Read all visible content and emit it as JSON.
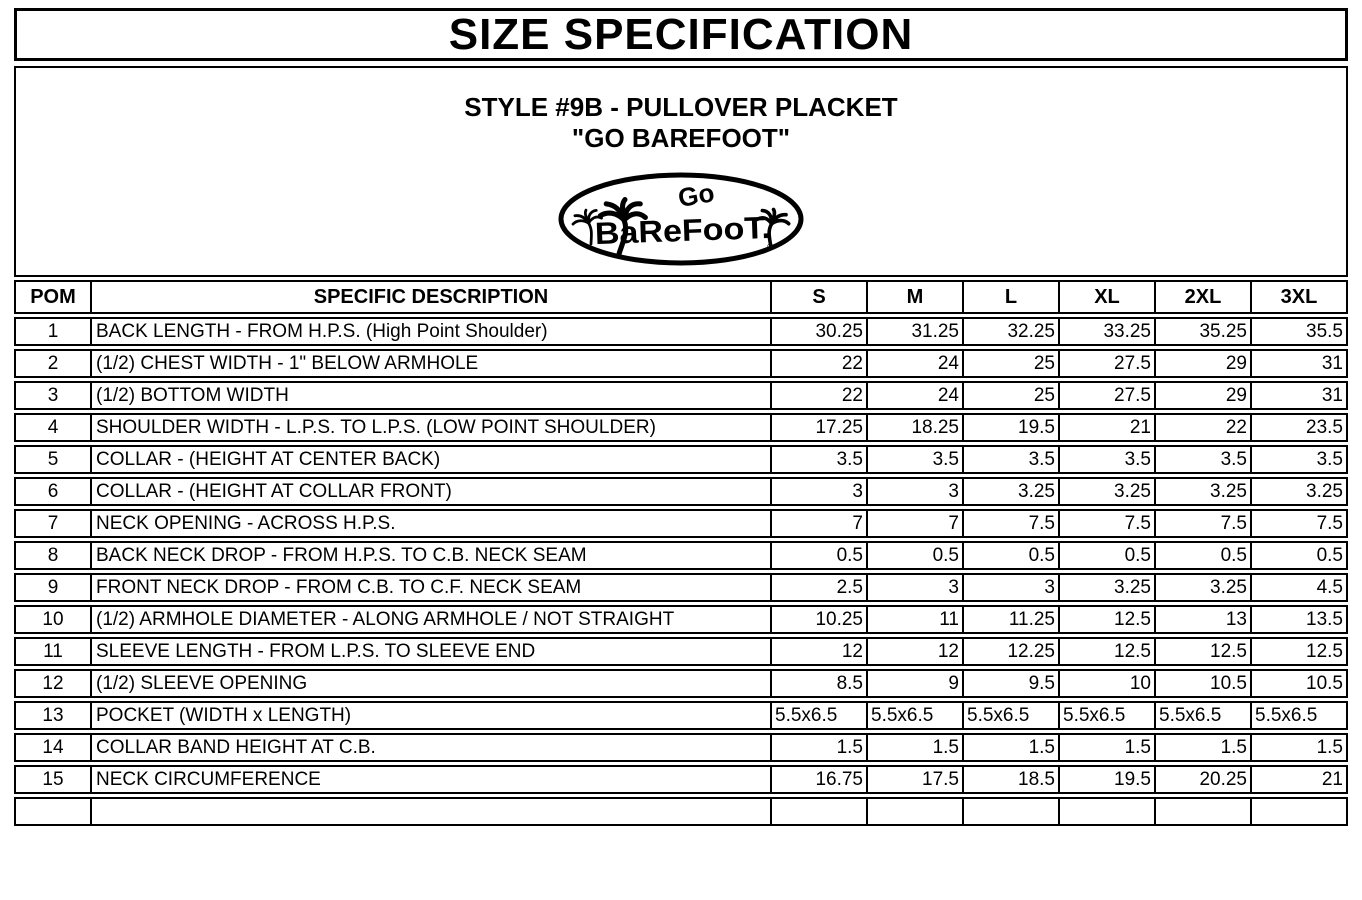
{
  "title": "SIZE SPECIFICATION",
  "header": {
    "style_line": "STYLE #9B - PULLOVER PLACKET",
    "brand_line": "\"GO BAREFOOT\""
  },
  "logo": {
    "top_text": "Go",
    "main_text": "BaReFooT.",
    "registered_mark": "®"
  },
  "table": {
    "columns": [
      "POM",
      "SPECIFIC DESCRIPTION",
      "S",
      "M",
      "L",
      "XL",
      "2XL",
      "3XL"
    ],
    "rows": [
      {
        "pom": "1",
        "description": "BACK LENGTH - FROM H.P.S. (High Point Shoulder)",
        "values": [
          "30.25",
          "31.25",
          "32.25",
          "33.25",
          "35.25",
          "35.5"
        ]
      },
      {
        "pom": "2",
        "description": "(1/2) CHEST WIDTH - 1\" BELOW ARMHOLE",
        "values": [
          "22",
          "24",
          "25",
          "27.5",
          "29",
          "31"
        ]
      },
      {
        "pom": "3",
        "description": "(1/2) BOTTOM WIDTH",
        "values": [
          "22",
          "24",
          "25",
          "27.5",
          "29",
          "31"
        ]
      },
      {
        "pom": "4",
        "description": "SHOULDER WIDTH - L.P.S. TO L.P.S. (LOW POINT SHOULDER)",
        "values": [
          "17.25",
          "18.25",
          "19.5",
          "21",
          "22",
          "23.5"
        ]
      },
      {
        "pom": "5",
        "description": "COLLAR - (HEIGHT AT CENTER BACK)",
        "values": [
          "3.5",
          "3.5",
          "3.5",
          "3.5",
          "3.5",
          "3.5"
        ]
      },
      {
        "pom": "6",
        "description": "COLLAR - (HEIGHT AT COLLAR FRONT)",
        "values": [
          "3",
          "3",
          "3.25",
          "3.25",
          "3.25",
          "3.25"
        ]
      },
      {
        "pom": "7",
        "description": "NECK OPENING - ACROSS H.P.S.",
        "values": [
          "7",
          "7",
          "7.5",
          "7.5",
          "7.5",
          "7.5"
        ]
      },
      {
        "pom": "8",
        "description": "BACK NECK DROP - FROM H.P.S. TO C.B. NECK SEAM",
        "values": [
          "0.5",
          "0.5",
          "0.5",
          "0.5",
          "0.5",
          "0.5"
        ]
      },
      {
        "pom": "9",
        "description": "FRONT NECK DROP - FROM C.B. TO C.F. NECK SEAM",
        "values": [
          "2.5",
          "3",
          "3",
          "3.25",
          "3.25",
          "4.5"
        ]
      },
      {
        "pom": "10",
        "description": "(1/2) ARMHOLE DIAMETER - ALONG ARMHOLE / NOT STRAIGHT",
        "values": [
          "10.25",
          "11",
          "11.25",
          "12.5",
          "13",
          "13.5"
        ]
      },
      {
        "pom": "11",
        "description": "SLEEVE LENGTH - FROM L.P.S. TO SLEEVE END",
        "values": [
          "12",
          "12",
          "12.25",
          "12.5",
          "12.5",
          "12.5"
        ]
      },
      {
        "pom": "12",
        "description": "(1/2) SLEEVE OPENING",
        "values": [
          "8.5",
          "9",
          "9.5",
          "10",
          "10.5",
          "10.5"
        ]
      },
      {
        "pom": "13",
        "description": "POCKET (WIDTH x LENGTH)",
        "values": [
          "5.5x6.5",
          "5.5x6.5",
          "5.5x6.5",
          "5.5x6.5",
          "5.5x6.5",
          "5.5x6.5"
        ],
        "value_align": "left"
      },
      {
        "pom": "14",
        "description": "COLLAR BAND HEIGHT AT C.B.",
        "values": [
          "1.5",
          "1.5",
          "1.5",
          "1.5",
          "1.5",
          "1.5"
        ]
      },
      {
        "pom": "15",
        "description": "NECK CIRCUMFERENCE",
        "values": [
          "16.75",
          "17.5",
          "18.5",
          "19.5",
          "20.25",
          "21"
        ]
      },
      {
        "pom": "",
        "description": "",
        "values": [
          "",
          "",
          "",
          "",
          "",
          ""
        ]
      }
    ]
  },
  "colors": {
    "ink": "#000000",
    "paper": "#ffffff"
  }
}
